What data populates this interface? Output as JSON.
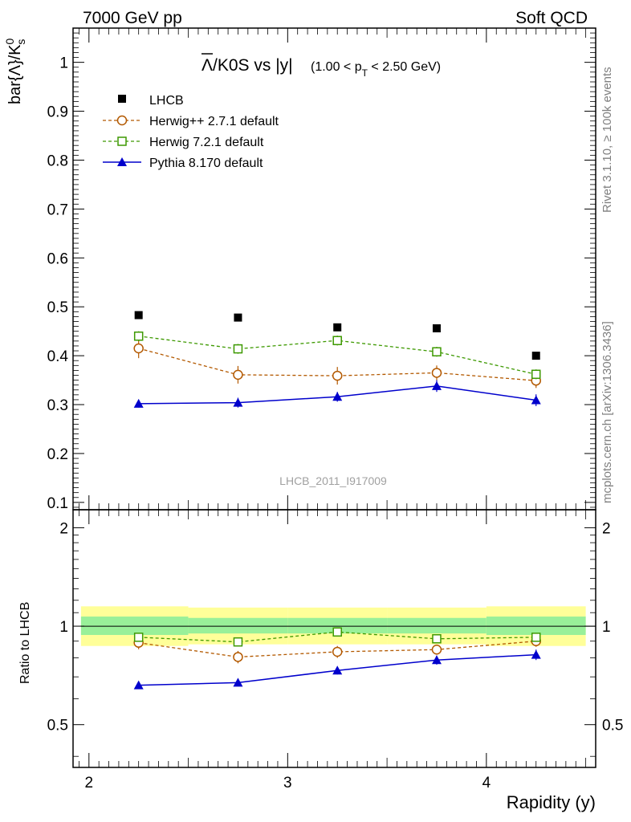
{
  "header": {
    "energy_label": "7000 GeV pp",
    "process_label": "Soft QCD"
  },
  "side_labels": {
    "rivet": "Rivet 3.1.10, ≥ 100k events",
    "source": "mcplots.cern.ch [arXiv:1306.3436]"
  },
  "chart_data": [
    {
      "type": "line",
      "title": "Λ/K0S vs |y|",
      "title_bar": "Λ",
      "title_rest": "/K0S vs |y|",
      "subtitle": "(1.00 < pT < 2.50 GeV)",
      "subtitle_pre": "(1.00 < p",
      "subtitle_sub": "T",
      "subtitle_post": " < 2.50 GeV)",
      "ylabel": "bar{Λ}/K⁰s",
      "ylabel_main": "bar{Λ}/K",
      "ylabel_sup": "0",
      "ylabel_sub": "s",
      "xlabel": "",
      "watermark": "LHCB_2011_I917009",
      "xlim": [
        1.92,
        4.55
      ],
      "ylim": [
        0.085,
        1.07
      ],
      "x_ticks": [
        2,
        3,
        4
      ],
      "y_ticks": [
        0.1,
        0.2,
        0.3,
        0.4,
        0.5,
        0.6,
        0.7,
        0.8,
        0.9,
        1
      ],
      "y_tick_labels": [
        "0.1",
        "0.2",
        "0.3",
        "0.4",
        "0.5",
        "0.6",
        "0.7",
        "0.8",
        "0.9",
        "1"
      ],
      "x": [
        2.25,
        2.75,
        3.25,
        3.75,
        4.25
      ],
      "series": [
        {
          "name": "LHCB",
          "color": "#000000",
          "marker": "filled-square",
          "line": "none",
          "values": [
            0.483,
            0.478,
            0.458,
            0.456,
            0.4
          ],
          "errors": [
            0.004,
            0.004,
            0.004,
            0.004,
            0.004
          ]
        },
        {
          "name": "Herwig++ 2.7.1 default",
          "color": "#b35900",
          "marker": "open-circle",
          "line": "dashed",
          "values": [
            0.415,
            0.361,
            0.359,
            0.365,
            0.349
          ],
          "errors": [
            0.02,
            0.018,
            0.018,
            0.015,
            0.015
          ]
        },
        {
          "name": "Herwig 7.2.1 default",
          "color": "#3d9900",
          "marker": "open-square",
          "line": "dashed",
          "values": [
            0.44,
            0.414,
            0.431,
            0.408,
            0.362
          ],
          "errors": [
            0.01,
            0.01,
            0.01,
            0.01,
            0.01
          ]
        },
        {
          "name": "Pythia 8.170 default",
          "color": "#0000cc",
          "marker": "filled-triangle",
          "line": "solid",
          "values": [
            0.302,
            0.304,
            0.316,
            0.338,
            0.309
          ],
          "errors": [
            0.008,
            0.01,
            0.01,
            0.012,
            0.012
          ]
        }
      ]
    },
    {
      "type": "line",
      "title": "Ratio to LHCB",
      "ylabel": "Ratio to LHCB",
      "xlabel": "Rapidity (y)",
      "xlim": [
        1.92,
        4.55
      ],
      "ylim": [
        0.37,
        2.27
      ],
      "x_ticks": [
        2,
        3,
        4
      ],
      "x_tick_labels": [
        "2",
        "3",
        "4"
      ],
      "y_ticks": [
        0.5,
        1,
        2
      ],
      "y_tick_labels": [
        "0.5",
        "1",
        "2"
      ],
      "x": [
        2.25,
        2.75,
        3.25,
        3.75,
        4.25
      ],
      "bins": [
        [
          1.96,
          2.5
        ],
        [
          2.5,
          3.0
        ],
        [
          3.0,
          3.5
        ],
        [
          3.5,
          4.0
        ],
        [
          4.0,
          4.5
        ]
      ],
      "band_yellow": [
        [
          0.87,
          1.15
        ],
        [
          0.88,
          1.14
        ],
        [
          0.88,
          1.14
        ],
        [
          0.88,
          1.14
        ],
        [
          0.87,
          1.15
        ]
      ],
      "band_green": [
        [
          0.94,
          1.07
        ],
        [
          0.95,
          1.06
        ],
        [
          0.95,
          1.06
        ],
        [
          0.95,
          1.06
        ],
        [
          0.94,
          1.07
        ]
      ],
      "series": [
        {
          "name": "Herwig++ 2.7.1 default",
          "color": "#b35900",
          "marker": "open-circle",
          "line": "dashed",
          "values": [
            0.89,
            0.805,
            0.835,
            0.848,
            0.9
          ],
          "errors": [
            0.04,
            0.035,
            0.035,
            0.03,
            0.035
          ]
        },
        {
          "name": "Herwig 7.2.1 default",
          "color": "#3d9900",
          "marker": "open-square",
          "line": "dashed",
          "values": [
            0.925,
            0.895,
            0.96,
            0.915,
            0.925
          ],
          "errors": [
            0.015,
            0.015,
            0.015,
            0.015,
            0.02
          ]
        },
        {
          "name": "Pythia 8.170 default",
          "color": "#0000cc",
          "marker": "filled-triangle",
          "line": "solid",
          "values": [
            0.66,
            0.672,
            0.732,
            0.788,
            0.818
          ],
          "errors": [
            0.015,
            0.015,
            0.02,
            0.025,
            0.03
          ]
        }
      ]
    }
  ]
}
